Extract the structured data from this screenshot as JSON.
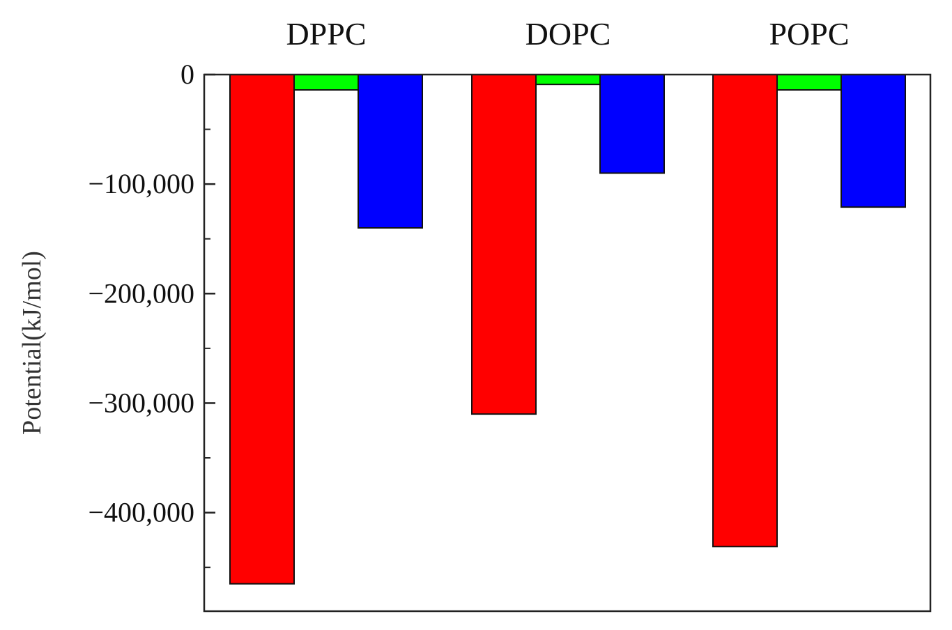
{
  "chart_data": {
    "type": "bar",
    "title": "",
    "xlabel": "",
    "ylabel": "Potential(kJ/mol)",
    "categories": [
      "DPPC",
      "DOPC",
      "POPC"
    ],
    "series": [
      {
        "values": [
          -465000,
          -310000,
          -431000
        ],
        "color": "#ff0000"
      },
      {
        "values": [
          -14000,
          -9000,
          -14000
        ],
        "color": "#00ff00"
      },
      {
        "values": [
          -140000,
          -90000,
          -121000
        ],
        "color": "#0000ff"
      }
    ],
    "yticks": [
      0,
      -100000,
      -200000,
      -300000,
      -400000
    ],
    "ytick_labels": [
      "0",
      "−100,000",
      "−200,000",
      "−300,000",
      "−400,000"
    ],
    "ylim": [
      -490000,
      0
    ],
    "grid": false,
    "legend": "none"
  }
}
